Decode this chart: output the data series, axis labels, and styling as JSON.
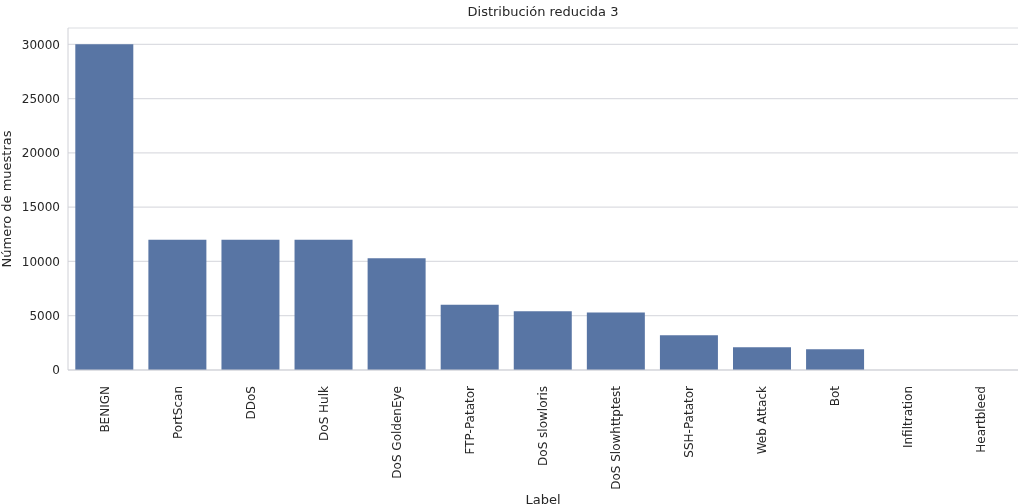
{
  "chart_data": {
    "type": "bar",
    "title": "Distribución reducida 3",
    "xlabel": "Label",
    "ylabel": "Número de muestras",
    "categories": [
      "BENIGN",
      "PortScan",
      "DDoS",
      "DoS Hulk",
      "DoS GoldenEye",
      "FTP-Patator",
      "DoS slowloris",
      "DoS Slowhttptest",
      "SSH-Patator",
      "Web Attack",
      "Bot",
      "Infiltration",
      "Heartbleed"
    ],
    "values": [
      30000,
      12000,
      12000,
      12000,
      10300,
      6000,
      5400,
      5300,
      3200,
      2100,
      1900,
      null,
      null
    ],
    "color": "#5875a4",
    "ylim": [
      0,
      31500
    ],
    "yticks": [
      0,
      5000,
      10000,
      15000,
      20000,
      25000,
      30000
    ],
    "grid": "y"
  }
}
